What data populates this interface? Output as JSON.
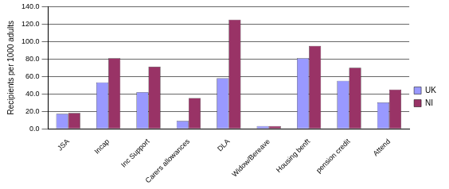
{
  "chart_data": {
    "type": "bar",
    "y_label": "Recipients per 1000 adults",
    "categories": [
      "JSA",
      "Incap",
      "Inc Support",
      "Carers allowances",
      "DLA",
      "Widow/Bereave",
      "Housing benft",
      "pension credit",
      "Attend"
    ],
    "series": [
      {
        "name": "UK",
        "color": "#9999ff",
        "values": [
          17,
          53,
          42,
          9,
          58,
          3,
          81,
          55,
          30
        ]
      },
      {
        "name": "NI",
        "color": "#993366",
        "values": [
          18,
          81,
          71,
          35,
          125,
          3,
          95,
          70,
          45
        ]
      }
    ],
    "ylim": [
      0,
      140
    ],
    "yticks": [
      {
        "value": 0,
        "label": "0.0"
      },
      {
        "value": 20,
        "label": "20.0"
      },
      {
        "value": 40,
        "label": "40.0"
      },
      {
        "value": 60,
        "label": "60.0"
      },
      {
        "value": 80,
        "label": "80.0"
      },
      {
        "value": 100,
        "label": "100.0"
      },
      {
        "value": 120,
        "label": "120.0"
      },
      {
        "value": 140,
        "label": "140.0"
      }
    ],
    "grid": true,
    "legend": "right"
  }
}
